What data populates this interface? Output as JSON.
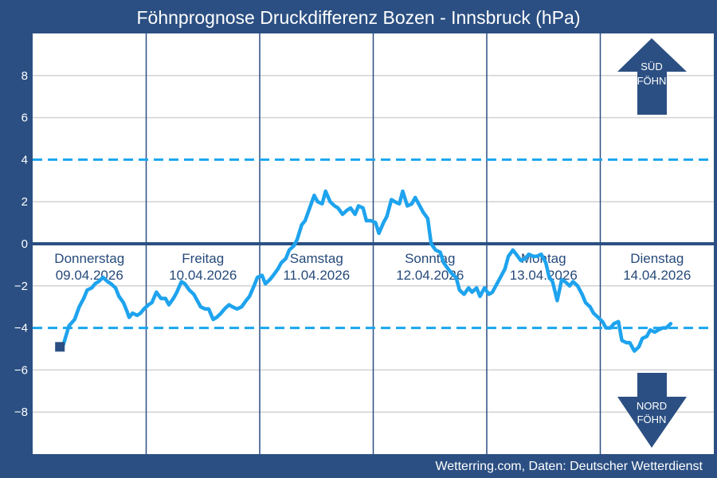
{
  "chart_data": {
    "type": "line",
    "title": "Föhnprognose Druckdifferenz Bozen - Innsbruck (hPa)",
    "ylim": [
      -10,
      10
    ],
    "y_ticks": [
      "8",
      "6",
      "4",
      "2",
      "0",
      "−2",
      "−4",
      "−6",
      "−8"
    ],
    "thresholds": [
      4,
      -4
    ],
    "grid": true,
    "days": [
      {
        "name": "Donnerstag",
        "date": "09.04.2026"
      },
      {
        "name": "Freitag",
        "date": "10.04.2026"
      },
      {
        "name": "Samstag",
        "date": "11.04.2026"
      },
      {
        "name": "Sonntag",
        "date": "12.04.2026"
      },
      {
        "name": "Montag",
        "date": "13.04.2026"
      },
      {
        "name": "Dienstag",
        "date": "14.04.2026"
      }
    ],
    "x_unit": "days from 09.04.2026 00:00",
    "series": [
      {
        "color": "#1ea3ee",
        "points": [
          [
            0.24,
            -4.9
          ],
          [
            0.27,
            -4.8
          ],
          [
            0.32,
            -3.9
          ],
          [
            0.37,
            -3.6
          ],
          [
            0.41,
            -3.0
          ],
          [
            0.45,
            -2.6
          ],
          [
            0.48,
            -2.2
          ],
          [
            0.52,
            -2.1
          ],
          [
            0.55,
            -1.9
          ],
          [
            0.58,
            -1.8
          ],
          [
            0.62,
            -1.6
          ],
          [
            0.66,
            -1.8
          ],
          [
            0.69,
            -1.9
          ],
          [
            0.73,
            -2.1
          ],
          [
            0.76,
            -2.5
          ],
          [
            0.8,
            -2.8
          ],
          [
            0.83,
            -3.2
          ],
          [
            0.85,
            -3.5
          ],
          [
            0.88,
            -3.3
          ],
          [
            0.92,
            -3.4
          ],
          [
            0.95,
            -3.3
          ],
          [
            0.98,
            -3.1
          ],
          [
            1.02,
            -2.9
          ],
          [
            1.05,
            -2.8
          ],
          [
            1.09,
            -2.3
          ],
          [
            1.13,
            -2.6
          ],
          [
            1.17,
            -2.6
          ],
          [
            1.2,
            -2.9
          ],
          [
            1.24,
            -2.6
          ],
          [
            1.27,
            -2.3
          ],
          [
            1.31,
            -1.8
          ],
          [
            1.34,
            -1.9
          ],
          [
            1.38,
            -2.2
          ],
          [
            1.42,
            -2.4
          ],
          [
            1.45,
            -2.7
          ],
          [
            1.48,
            -3.0
          ],
          [
            1.52,
            -3.1
          ],
          [
            1.55,
            -3.1
          ],
          [
            1.59,
            -3.6
          ],
          [
            1.62,
            -3.5
          ],
          [
            1.66,
            -3.3
          ],
          [
            1.69,
            -3.1
          ],
          [
            1.73,
            -2.9
          ],
          [
            1.76,
            -3.0
          ],
          [
            1.8,
            -3.1
          ],
          [
            1.84,
            -3.0
          ],
          [
            1.88,
            -2.7
          ],
          [
            1.91,
            -2.5
          ],
          [
            1.95,
            -2.0
          ],
          [
            1.98,
            -1.6
          ],
          [
            2.02,
            -1.5
          ],
          [
            2.05,
            -1.9
          ],
          [
            2.09,
            -1.7
          ],
          [
            2.12,
            -1.5
          ],
          [
            2.16,
            -1.2
          ],
          [
            2.19,
            -0.9
          ],
          [
            2.23,
            -0.7
          ],
          [
            2.26,
            -0.3
          ],
          [
            2.3,
            -0.1
          ],
          [
            2.33,
            0.2
          ],
          [
            2.37,
            0.9
          ],
          [
            2.4,
            1.1
          ],
          [
            2.44,
            1.7
          ],
          [
            2.48,
            2.3
          ],
          [
            2.51,
            2.0
          ],
          [
            2.55,
            1.9
          ],
          [
            2.58,
            2.5
          ],
          [
            2.62,
            2.0
          ],
          [
            2.66,
            1.8
          ],
          [
            2.69,
            1.7
          ],
          [
            2.73,
            1.4
          ],
          [
            2.77,
            1.6
          ],
          [
            2.8,
            1.7
          ],
          [
            2.84,
            1.4
          ],
          [
            2.87,
            1.8
          ],
          [
            2.91,
            1.7
          ],
          [
            2.94,
            1.1
          ],
          [
            2.98,
            1.1
          ],
          [
            3.02,
            1.0
          ],
          [
            3.05,
            0.5
          ],
          [
            3.09,
            1.0
          ],
          [
            3.12,
            1.3
          ],
          [
            3.16,
            2.1
          ],
          [
            3.19,
            2.0
          ],
          [
            3.23,
            1.9
          ],
          [
            3.26,
            2.5
          ],
          [
            3.3,
            1.8
          ],
          [
            3.34,
            1.9
          ],
          [
            3.37,
            2.2
          ],
          [
            3.4,
            1.9
          ],
          [
            3.44,
            1.5
          ],
          [
            3.48,
            1.2
          ],
          [
            3.51,
            0.0
          ],
          [
            3.55,
            -0.3
          ],
          [
            3.59,
            -0.4
          ],
          [
            3.62,
            -0.9
          ],
          [
            3.66,
            -1.2
          ],
          [
            3.69,
            -1.4
          ],
          [
            3.73,
            -1.6
          ],
          [
            3.76,
            -2.2
          ],
          [
            3.8,
            -2.4
          ],
          [
            3.84,
            -2.1
          ],
          [
            3.87,
            -2.3
          ],
          [
            3.91,
            -2.1
          ],
          [
            3.94,
            -2.5
          ],
          [
            3.98,
            -2.1
          ],
          [
            4.02,
            -2.4
          ],
          [
            4.05,
            -2.3
          ],
          [
            4.09,
            -1.9
          ],
          [
            4.12,
            -1.6
          ],
          [
            4.16,
            -1.2
          ],
          [
            4.19,
            -0.6
          ],
          [
            4.23,
            -0.3
          ],
          [
            4.26,
            -0.5
          ],
          [
            4.3,
            -0.8
          ],
          [
            4.34,
            -0.7
          ],
          [
            4.37,
            -0.5
          ],
          [
            4.41,
            -0.6
          ],
          [
            4.44,
            -0.6
          ],
          [
            4.48,
            -0.5
          ],
          [
            4.52,
            -0.9
          ],
          [
            4.55,
            -1.6
          ],
          [
            4.58,
            -1.8
          ],
          [
            4.62,
            -2.7
          ],
          [
            4.66,
            -1.7
          ],
          [
            4.69,
            -1.8
          ],
          [
            4.73,
            -2.0
          ],
          [
            4.76,
            -1.8
          ],
          [
            4.8,
            -2.0
          ],
          [
            4.84,
            -2.4
          ],
          [
            4.87,
            -2.8
          ],
          [
            4.91,
            -3.0
          ],
          [
            4.94,
            -3.3
          ],
          [
            4.98,
            -3.5
          ],
          [
            5.02,
            -3.7
          ],
          [
            5.05,
            -4.0
          ],
          [
            5.09,
            -4.0
          ],
          [
            5.12,
            -3.8
          ],
          [
            5.16,
            -3.7
          ],
          [
            5.19,
            -4.6
          ],
          [
            5.23,
            -4.7
          ],
          [
            5.26,
            -4.7
          ],
          [
            5.3,
            -5.1
          ],
          [
            5.34,
            -4.9
          ],
          [
            5.37,
            -4.5
          ],
          [
            5.41,
            -4.4
          ],
          [
            5.44,
            -4.1
          ],
          [
            5.48,
            -4.2
          ],
          [
            5.51,
            -4.1
          ],
          [
            5.55,
            -4.0
          ],
          [
            5.58,
            -4.0
          ],
          [
            5.62,
            -3.8
          ]
        ]
      }
    ],
    "start_marker": {
      "x": 0.24,
      "y": -4.9
    },
    "arrows": {
      "up": {
        "line1": "SÜD",
        "line2": "FÖHN"
      },
      "down": {
        "line1": "NORD",
        "line2": "FÖHN"
      }
    },
    "footer": "Wetterring.com, Daten: Deutscher Wetterdienst",
    "colors": {
      "frame": "#2b4f82",
      "plot_bg": "#ffffff",
      "grid": "#d2d2d2",
      "threshold": "#19a6ee",
      "zero_line": "#2b4f82",
      "series": "#1ea3ee",
      "day_divider": "#2b4f82",
      "day_text": "#264a7a",
      "arrow": "#2b4f82"
    }
  }
}
